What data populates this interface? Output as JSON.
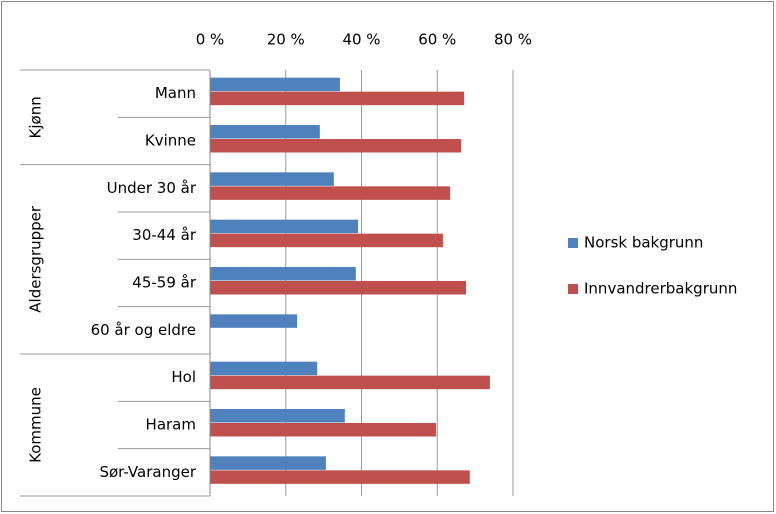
{
  "chart_data": {
    "type": "bar",
    "orientation": "horizontal",
    "groups": [
      {
        "name": "Kjønn",
        "categories": [
          "Mann",
          "Kvinne"
        ]
      },
      {
        "name": "Aldersgrupper",
        "categories": [
          "Under 30 år",
          "30-44 år",
          "45-59 år",
          "60 år og eldre"
        ]
      },
      {
        "name": "Kommune",
        "categories": [
          "Hol",
          "Haram",
          "Sør-Varanger"
        ]
      }
    ],
    "series": [
      {
        "name": "Norsk bakgrunn",
        "color": "#4f81bd",
        "values": [
          34.3,
          29.0,
          32.7,
          39.1,
          38.5,
          23.0,
          28.3,
          35.6,
          30.6
        ]
      },
      {
        "name": "Innvandrerbakgrunn",
        "color": "#c0504d",
        "values": [
          67.1,
          66.3,
          63.4,
          61.5,
          67.6,
          null,
          73.9,
          59.7,
          68.6
        ]
      }
    ],
    "xlim": [
      0,
      80
    ],
    "xticks": [
      {
        "value": 0,
        "label": "0 %"
      },
      {
        "value": 20,
        "label": "20 %"
      },
      {
        "value": 40,
        "label": "40 %"
      },
      {
        "value": 60,
        "label": "60 %"
      },
      {
        "value": 80,
        "label": "80 %"
      }
    ],
    "grid": true,
    "legend": "right"
  }
}
